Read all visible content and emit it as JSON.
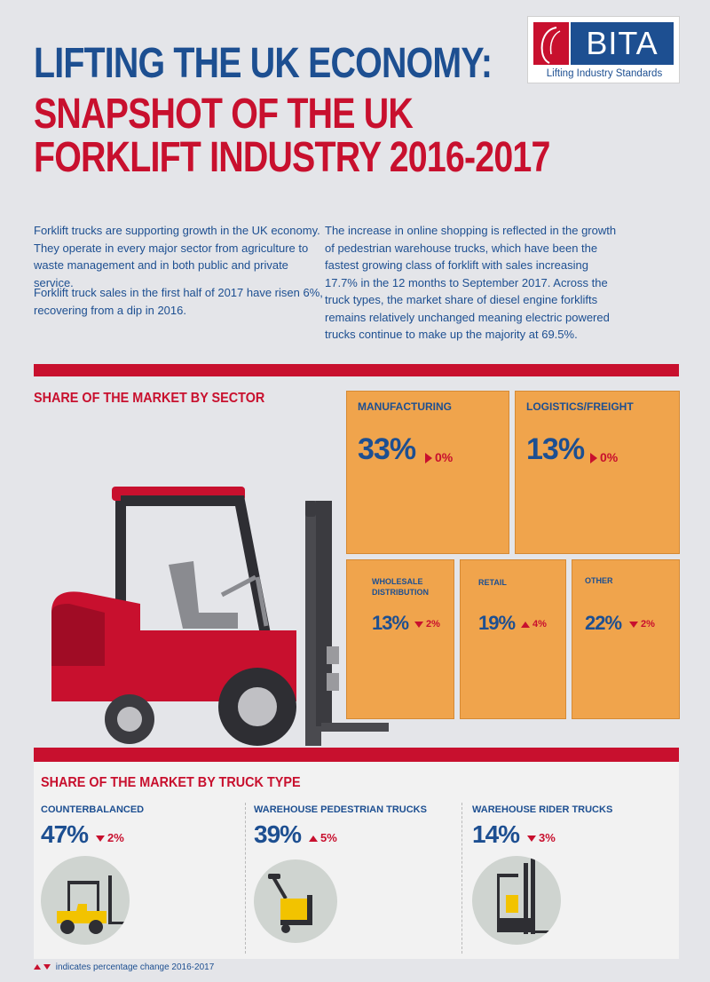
{
  "title": {
    "line1": "LIFTING THE UK ECONOMY:",
    "line2": "SNAPSHOT OF THE UK",
    "line3": "FORKLIFT INDUSTRY 2016-2017"
  },
  "logo": {
    "brand": "BITA",
    "tagline": "Lifting Industry Standards"
  },
  "intro": {
    "left_p1": "Forklift trucks are supporting growth in the UK economy. They operate in every major sector from agriculture to waste management and in both public and private service.",
    "left_p2": "Forklift truck sales in the first half of 2017 have risen 6%, recovering from a dip in 2016.",
    "right_p1": "The increase in online shopping is reflected in the growth of pedestrian warehouse trucks, which have been the fastest growing class of forklift with sales increasing 17.7% in the 12 months to September 2017. Across the truck types, the market share of diesel engine forklifts remains relatively unchanged meaning electric powered trucks continue to make up the majority at 69.5%."
  },
  "sector": {
    "title": "SHARE OF THE MARKET BY SECTOR",
    "items": [
      {
        "label": "MANUFACTURING",
        "share": "33%",
        "change": "0%",
        "direction": "flat"
      },
      {
        "label": "LOGISTICS/FREIGHT",
        "share": "13%",
        "change": "0%",
        "direction": "flat"
      },
      {
        "label_line1": "WHOLESALE",
        "label_line2": "DISTRIBUTION",
        "share": "13%",
        "change": "2%",
        "direction": "down"
      },
      {
        "label": "RETAIL",
        "share": "19%",
        "change": "4%",
        "direction": "up"
      },
      {
        "label": "OTHER",
        "share": "22%",
        "change": "2%",
        "direction": "down"
      }
    ]
  },
  "truck_type": {
    "title": "SHARE OF THE MARKET BY TRUCK TYPE",
    "items": [
      {
        "label": "COUNTERBALANCED",
        "share": "47%",
        "change": "2%",
        "direction": "down"
      },
      {
        "label": "WAREHOUSE PEDESTRIAN TRUCKS",
        "share": "39%",
        "change": "5%",
        "direction": "up"
      },
      {
        "label": "WAREHOUSE RIDER TRUCKS",
        "share": "14%",
        "change": "3%",
        "direction": "down"
      }
    ]
  },
  "legend": {
    "text": "indicates percentage change 2016-2017"
  },
  "colors": {
    "navy": "#1d4f91",
    "red": "#c8102e",
    "orange": "#f0a44c",
    "background": "#e4e5e9"
  }
}
